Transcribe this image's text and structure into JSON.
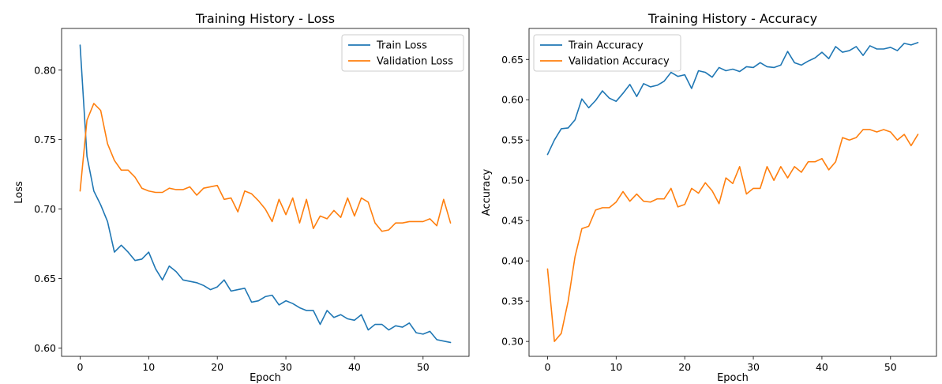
{
  "chart_data": [
    {
      "type": "line",
      "title": "Training History - Loss",
      "xlabel": "Epoch",
      "ylabel": "Loss",
      "xlim": [
        -2.7,
        56.7
      ],
      "ylim": [
        0.594,
        0.83
      ],
      "xticks": [
        0,
        10,
        20,
        30,
        40,
        50
      ],
      "yticks": [
        0.6,
        0.65,
        0.7,
        0.75,
        0.8
      ],
      "ytick_labels": [
        "0.60",
        "0.65",
        "0.70",
        "0.75",
        "0.80"
      ],
      "grid": false,
      "legend_position": "top-right",
      "x": [
        0,
        1,
        2,
        3,
        4,
        5,
        6,
        7,
        8,
        9,
        10,
        11,
        12,
        13,
        14,
        15,
        16,
        17,
        18,
        19,
        20,
        21,
        22,
        23,
        24,
        25,
        26,
        27,
        28,
        29,
        30,
        31,
        32,
        33,
        34,
        35,
        36,
        37,
        38,
        39,
        40,
        41,
        42,
        43,
        44,
        45,
        46,
        47,
        48,
        49,
        50,
        51,
        52,
        53,
        54
      ],
      "series": [
        {
          "name": "Train Loss",
          "color": "#1f77b4",
          "values": [
            0.818,
            0.738,
            0.713,
            0.703,
            0.691,
            0.669,
            0.674,
            0.669,
            0.663,
            0.664,
            0.669,
            0.657,
            0.649,
            0.659,
            0.655,
            0.649,
            0.648,
            0.647,
            0.645,
            0.642,
            0.644,
            0.649,
            0.641,
            0.642,
            0.643,
            0.633,
            0.634,
            0.637,
            0.638,
            0.631,
            0.634,
            0.632,
            0.629,
            0.627,
            0.627,
            0.617,
            0.627,
            0.622,
            0.624,
            0.621,
            0.62,
            0.624,
            0.613,
            0.617,
            0.617,
            0.613,
            0.616,
            0.615,
            0.618,
            0.611,
            0.61,
            0.612,
            0.606,
            0.605,
            0.604
          ]
        },
        {
          "name": "Validation Loss",
          "color": "#ff7f0e",
          "values": [
            0.713,
            0.764,
            0.776,
            0.771,
            0.747,
            0.735,
            0.728,
            0.728,
            0.723,
            0.715,
            0.713,
            0.712,
            0.712,
            0.715,
            0.714,
            0.714,
            0.716,
            0.71,
            0.715,
            0.716,
            0.717,
            0.707,
            0.708,
            0.698,
            0.713,
            0.711,
            0.706,
            0.7,
            0.691,
            0.707,
            0.696,
            0.708,
            0.69,
            0.707,
            0.686,
            0.695,
            0.693,
            0.699,
            0.694,
            0.708,
            0.695,
            0.708,
            0.705,
            0.69,
            0.684,
            0.685,
            0.69,
            0.69,
            0.691,
            0.691,
            0.691,
            0.693,
            0.688,
            0.707,
            0.69
          ]
        }
      ]
    },
    {
      "type": "line",
      "title": "Training History - Accuracy",
      "xlabel": "Epoch",
      "ylabel": "Accuracy",
      "xlim": [
        -2.7,
        56.7
      ],
      "ylim": [
        0.2815,
        0.6885
      ],
      "xticks": [
        0,
        10,
        20,
        30,
        40,
        50
      ],
      "yticks": [
        0.3,
        0.35,
        0.4,
        0.45,
        0.5,
        0.55,
        0.6,
        0.65
      ],
      "ytick_labels": [
        "0.30",
        "0.35",
        "0.40",
        "0.45",
        "0.50",
        "0.55",
        "0.60",
        "0.65"
      ],
      "grid": false,
      "legend_position": "top-left",
      "x": [
        0,
        1,
        2,
        3,
        4,
        5,
        6,
        7,
        8,
        9,
        10,
        11,
        12,
        13,
        14,
        15,
        16,
        17,
        18,
        19,
        20,
        21,
        22,
        23,
        24,
        25,
        26,
        27,
        28,
        29,
        30,
        31,
        32,
        33,
        34,
        35,
        36,
        37,
        38,
        39,
        40,
        41,
        42,
        43,
        44,
        45,
        46,
        47,
        48,
        49,
        50,
        51,
        52,
        53,
        54
      ],
      "series": [
        {
          "name": "Train Accuracy",
          "color": "#1f77b4",
          "values": [
            0.532,
            0.55,
            0.564,
            0.565,
            0.575,
            0.601,
            0.59,
            0.599,
            0.611,
            0.602,
            0.598,
            0.608,
            0.619,
            0.604,
            0.62,
            0.616,
            0.618,
            0.623,
            0.634,
            0.629,
            0.631,
            0.614,
            0.636,
            0.634,
            0.628,
            0.64,
            0.636,
            0.638,
            0.635,
            0.641,
            0.64,
            0.646,
            0.641,
            0.64,
            0.643,
            0.66,
            0.646,
            0.643,
            0.648,
            0.652,
            0.659,
            0.651,
            0.666,
            0.659,
            0.661,
            0.666,
            0.655,
            0.667,
            0.663,
            0.663,
            0.665,
            0.661,
            0.67,
            0.668,
            0.671
          ]
        },
        {
          "name": "Validation Accuracy",
          "color": "#ff7f0e",
          "values": [
            0.39,
            0.3,
            0.31,
            0.35,
            0.405,
            0.44,
            0.443,
            0.463,
            0.466,
            0.466,
            0.473,
            0.486,
            0.474,
            0.483,
            0.474,
            0.473,
            0.477,
            0.477,
            0.49,
            0.467,
            0.47,
            0.49,
            0.484,
            0.497,
            0.487,
            0.471,
            0.503,
            0.496,
            0.517,
            0.483,
            0.49,
            0.49,
            0.517,
            0.5,
            0.517,
            0.503,
            0.517,
            0.51,
            0.523,
            0.523,
            0.527,
            0.513,
            0.523,
            0.553,
            0.55,
            0.553,
            0.563,
            0.563,
            0.56,
            0.563,
            0.56,
            0.55,
            0.557,
            0.543,
            0.557
          ]
        }
      ]
    }
  ]
}
